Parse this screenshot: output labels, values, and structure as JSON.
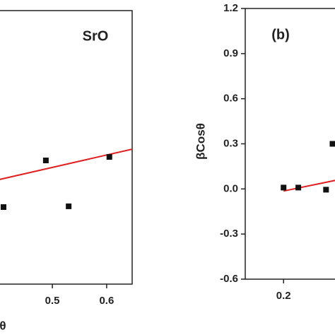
{
  "chart_data": [
    {
      "type": "scatter",
      "title": "SrO",
      "xlabel": "θ",
      "x": [
        0.41,
        0.488,
        0.53,
        0.605
      ],
      "values": [
        -0.093,
        0.214,
        -0.088,
        0.237
      ],
      "color": "#111111",
      "fit": {
        "x": [
          0.397,
          0.647
        ],
        "values": [
          0.084,
          0.288
        ],
        "color": "#e02020"
      },
      "xlim": [
        0.397,
        0.647
      ],
      "ylim": [
        -0.6,
        1.2
      ],
      "xticks": [
        0.5,
        0.6
      ]
    },
    {
      "type": "scatter",
      "title": "(b)",
      "ylabel": "βCosθ",
      "x": [
        0.2,
        0.225,
        0.272,
        0.283
      ],
      "values": [
        0.009,
        0.009,
        -0.005,
        0.3
      ],
      "color": "#111111",
      "fit": {
        "x": [
          0.2,
          0.304
        ],
        "values": [
          -0.014,
          0.07
        ],
        "color": "#e02020"
      },
      "xlim": [
        0.135,
        0.304
      ],
      "ylim": [
        -0.6,
        1.2
      ],
      "xticks": [
        0.2
      ],
      "yticks": [
        1.2,
        0.9,
        0.6,
        0.3,
        {
          "value": 0,
          "label": "0.0"
        },
        -0.3,
        -0.6
      ]
    }
  ]
}
